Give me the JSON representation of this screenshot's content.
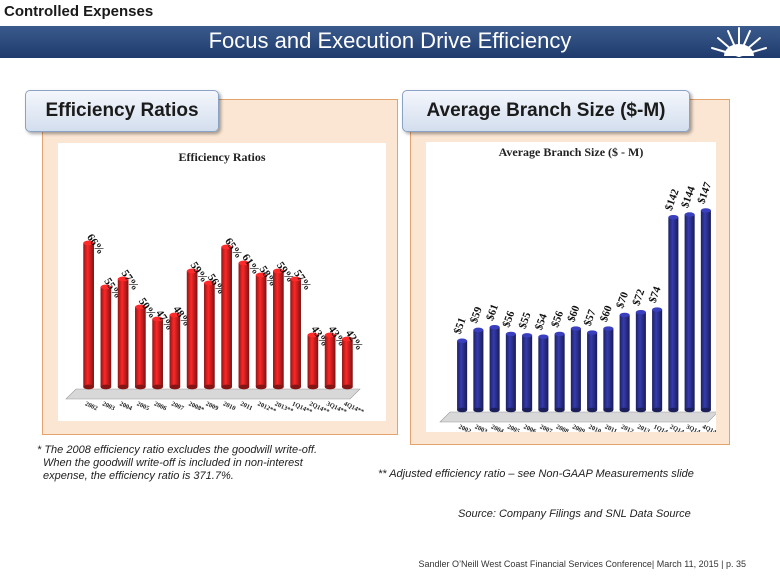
{
  "header": {
    "section": "Controlled Expenses",
    "title": "Focus and Execution Drive Efficiency"
  },
  "panels": {
    "left_tab": "Efficiency Ratios",
    "right_tab": "Average Branch Size ($-M)"
  },
  "chart_data": [
    {
      "type": "bar",
      "title": "Efficiency Ratios",
      "color": "#cc1f1f",
      "categories": [
        "2002",
        "2003",
        "2004",
        "2005",
        "2006",
        "2007",
        "2008*",
        "2009",
        "2010",
        "2011",
        "2012**",
        "2013**",
        "1Q14**",
        "2Q14**",
        "3Q14**",
        "4Q14**"
      ],
      "values": [
        66,
        55,
        57,
        50,
        47,
        48,
        59,
        56,
        65,
        61,
        58,
        59,
        57,
        43,
        43,
        42
      ],
      "labels": [
        "66%",
        "55%",
        "57%",
        "50%",
        "47%",
        "48%",
        "59%",
        "56%",
        "65%",
        "61%",
        "58%",
        "59%",
        "57%",
        "43%",
        "43%",
        "42%"
      ],
      "ylim": [
        30,
        70
      ]
    },
    {
      "type": "bar",
      "title": "Average Branch Size ($ - M)",
      "color": "#2a2f8c",
      "categories": [
        "2002",
        "2003",
        "2004",
        "2005",
        "2006",
        "2007",
        "2008",
        "2009",
        "2010",
        "2011",
        "2012",
        "2013",
        "1Q14",
        "2Q14",
        "3Q14",
        "4Q14"
      ],
      "values": [
        51,
        59,
        61,
        56,
        55,
        54,
        56,
        60,
        57,
        60,
        70,
        72,
        74,
        142,
        144,
        147
      ],
      "labels": [
        "$51",
        "$59",
        "$61",
        "$56",
        "$55",
        "$54",
        "$56",
        "$60",
        "$57",
        "$60",
        "$70",
        "$72",
        "$74",
        "$142",
        "$144",
        "$147"
      ],
      "ylim": [
        0,
        165
      ]
    }
  ],
  "notes": {
    "goodwill_1": "* The 2008 efficiency ratio excludes the goodwill write-off.",
    "goodwill_2": "When the goodwill write-off is included in non-interest",
    "goodwill_3": "expense, the efficiency ratio is 371.7%.",
    "adjusted": "** Adjusted efficiency ratio – see Non-GAAP Measurements slide",
    "source": "Source: Company Filings and SNL Data Source"
  },
  "footer": "Sandler O’Neill West Coast Financial Services Conference| March 11, 2015 | p. 35",
  "colors": {
    "banner": "#1f3b6e",
    "panel_border": "#e3a36c",
    "panel_fill": "#fbe6d3"
  }
}
